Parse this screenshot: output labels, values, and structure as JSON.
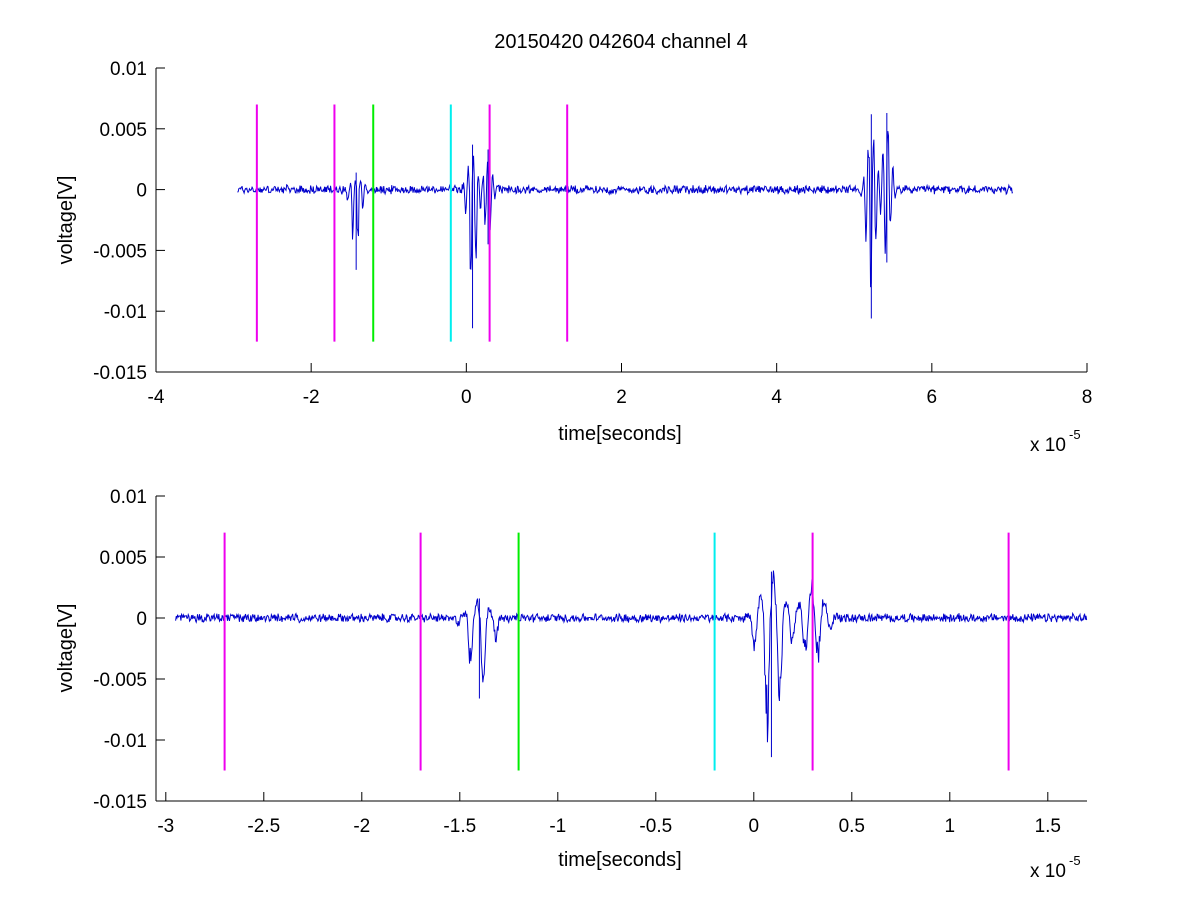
{
  "chart_data": [
    {
      "type": "line",
      "title": "20150420 042604 channel 4",
      "xlabel": "time[seconds]",
      "ylabel": "voltage[V]",
      "x_exponent_label": "x 10",
      "x_exponent_power": "-5",
      "xlim": [
        -4,
        8
      ],
      "ylim": [
        -0.015,
        0.01
      ],
      "xticks": [
        -4,
        -2,
        0,
        2,
        4,
        6,
        8
      ],
      "xtick_labels": [
        "-4",
        "-2",
        "0",
        "2",
        "4",
        "6",
        "8"
      ],
      "yticks": [
        0.01,
        0.005,
        0,
        -0.005,
        -0.01,
        -0.015
      ],
      "ytick_labels": [
        "0.01",
        "0.005",
        "0",
        "-0.005",
        "-0.01",
        "-0.015"
      ],
      "grid": false,
      "signal": {
        "color": "#0000cc",
        "x_range": [
          -2.95,
          7.05
        ],
        "noise_amplitude": 0.0003,
        "bursts": [
          {
            "t": -1.42,
            "min": -0.0066,
            "max": 0.0014
          },
          {
            "t": 0.08,
            "min": -0.0114,
            "max": 0.0037
          },
          {
            "t": 0.28,
            "min": -0.0045,
            "max": 0.0033
          },
          {
            "t": 5.22,
            "min": -0.0106,
            "max": 0.0062
          },
          {
            "t": 5.42,
            "min": -0.006,
            "max": 0.0063
          }
        ]
      },
      "markers": [
        {
          "x": -2.7,
          "color": "#ee00ee"
        },
        {
          "x": -1.7,
          "color": "#ee00ee"
        },
        {
          "x": -1.2,
          "color": "#00ee00"
        },
        {
          "x": -0.2,
          "color": "#00eeee"
        },
        {
          "x": 0.3,
          "color": "#ee00ee"
        },
        {
          "x": 1.3,
          "color": "#ee00ee"
        }
      ],
      "marker_y_range": [
        -0.0125,
        0.007
      ]
    },
    {
      "type": "line",
      "title": "",
      "xlabel": "time[seconds]",
      "ylabel": "voltage[V]",
      "x_exponent_label": "x 10",
      "x_exponent_power": "-5",
      "xlim": [
        -3.05,
        1.7
      ],
      "ylim": [
        -0.015,
        0.01
      ],
      "xticks": [
        -3,
        -2.5,
        -2,
        -1.5,
        -1,
        -0.5,
        0,
        0.5,
        1,
        1.5
      ],
      "xtick_labels": [
        "-3",
        "-2.5",
        "-2",
        "-1.5",
        "-1",
        "-0.5",
        "0",
        "0.5",
        "1",
        "1.5"
      ],
      "yticks": [
        0.01,
        0.005,
        0,
        -0.005,
        -0.01,
        -0.015
      ],
      "ytick_labels": [
        "0.01",
        "0.005",
        "0",
        "-0.005",
        "-0.01",
        "-0.015"
      ],
      "grid": false,
      "signal": {
        "color": "#0000cc",
        "x_range": [
          -2.95,
          1.7
        ],
        "noise_amplitude": 0.0003,
        "bursts": [
          {
            "t": -1.4,
            "min": -0.0066,
            "max": 0.0016
          },
          {
            "t": 0.09,
            "min": -0.0114,
            "max": 0.0038
          },
          {
            "t": 0.3,
            "min": -0.0042,
            "max": 0.0033
          }
        ]
      },
      "markers": [
        {
          "x": -2.7,
          "color": "#ee00ee"
        },
        {
          "x": -1.7,
          "color": "#ee00ee"
        },
        {
          "x": -1.2,
          "color": "#00ee00"
        },
        {
          "x": -0.2,
          "color": "#00eeee"
        },
        {
          "x": 0.3,
          "color": "#ee00ee"
        },
        {
          "x": 1.3,
          "color": "#ee00ee"
        }
      ],
      "marker_y_range": [
        -0.0125,
        0.007
      ]
    }
  ]
}
